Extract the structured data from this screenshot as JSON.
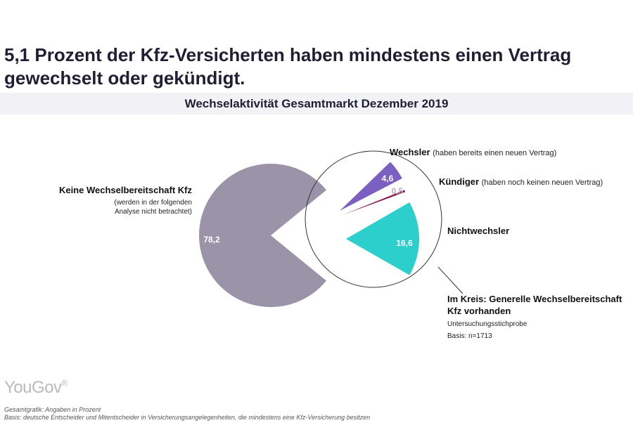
{
  "headline": "5,1 Prozent der Kfz-Versicherten haben mindestens einen Vertrag gewechselt oder gekündigt.",
  "chart_data": {
    "type": "pie",
    "title": "Wechselaktivität Gesamtmarkt Dezember 2019",
    "unit_note": "Gesamtgrafik: Angaben in Prozent",
    "main_pie": {
      "slices": [
        {
          "name": "Keine Wechselbereitschaft Kfz",
          "value": 78.2,
          "label": "78,2",
          "color": "#9b93a8"
        }
      ],
      "remainder": 21.8
    },
    "detail_circle": {
      "slices": [
        {
          "name": "Wechsler",
          "value": 4.6,
          "label": "4,6",
          "color": "#7b5fc1"
        },
        {
          "name": "Kündiger",
          "value": 0.5,
          "label": "0,5",
          "color": "#8a1d4e"
        },
        {
          "name": "Nichtwechsler",
          "value": 16.6,
          "label": "16,6",
          "color": "#2ccfcb"
        }
      ]
    }
  },
  "labels": {
    "keine_title": "Keine Wechselbereitschaft Kfz",
    "keine_note_1": "(werden in der folgenden",
    "keine_note_2": "Analyse nicht betrachtet)",
    "wechsler_title": "Wechsler",
    "wechsler_note": "(haben bereits einen neuen Vertrag)",
    "kuendiger_title": "Kündiger",
    "kuendiger_note": "(haben noch keinen neuen Vertrag)",
    "nichtwechsler_title": "Nichtwechsler",
    "kreis_title_1": "Im Kreis: Generelle Wechselbereitschaft",
    "kreis_title_2": "Kfz vorhanden",
    "stichprobe": "Untersuchungsstichprobe",
    "basis": "Basis: n=1713"
  },
  "brand": "YouGov",
  "footer": {
    "line1": "Gesamtgrafik: Angaben in Prozent",
    "line2": "Basis: deutsche Entscheider und Mitentscheider in Versicherungsangelegenheiten, die mindestens eine Kfz-Versicherung besitzen"
  }
}
